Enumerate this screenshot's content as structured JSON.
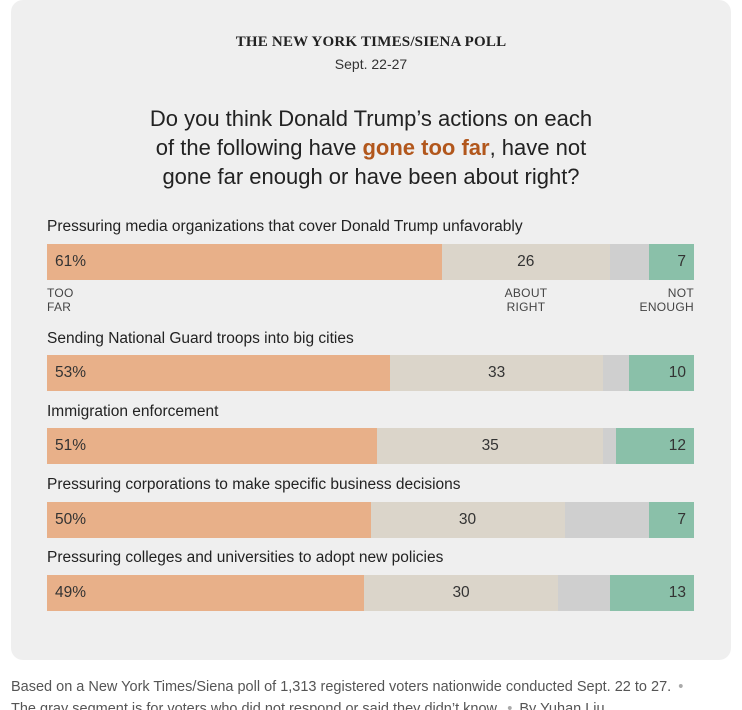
{
  "header": {
    "poll_name": "THE NEW YORK TIMES/SIENA POLL",
    "date": "Sept. 22-27"
  },
  "question": {
    "line1": "Do you think Donald Trump’s actions on each",
    "line2_pre": "of the following have ",
    "line2_highlight": "gone too far",
    "line2_post": ", have not",
    "line3": "gone far enough or have been about right?"
  },
  "legend": {
    "too_far": [
      "TOO",
      "FAR"
    ],
    "about_right": [
      "ABOUT",
      "RIGHT"
    ],
    "not_enough": [
      "NOT",
      "ENOUGH"
    ]
  },
  "colors": {
    "too_far": "#e8b089",
    "about_right": "#dbd5ca",
    "no_answer": "#cfcfcf",
    "not_enough": "#8ac0a9",
    "highlight": "#b2571c"
  },
  "chart_data": {
    "type": "bar",
    "orientation": "horizontal-stacked",
    "series_names": [
      "Too far",
      "About right",
      "No answer",
      "Not enough"
    ],
    "categories": [
      "Pressuring media organizations that cover Donald Trump unfavorably",
      "Sending National Guard troops into big cities",
      "Immigration enforcement",
      "Pressuring corporations to make specific business decisions",
      "Pressuring colleges and universities to adopt new policies"
    ],
    "series": [
      {
        "name": "Too far",
        "values": [
          61,
          53,
          51,
          50,
          49
        ]
      },
      {
        "name": "About right",
        "values": [
          26,
          33,
          35,
          30,
          30
        ]
      },
      {
        "name": "No answer",
        "values": [
          6,
          4,
          2,
          13,
          8
        ]
      },
      {
        "name": "Not enough",
        "values": [
          7,
          10,
          12,
          7,
          13
        ]
      }
    ],
    "value_labels": [
      [
        "61%",
        "26",
        "",
        "7"
      ],
      [
        "53%",
        "33",
        "",
        "10"
      ],
      [
        "51%",
        "35",
        "",
        "12"
      ],
      [
        "50%",
        "30",
        "",
        "7"
      ],
      [
        "49%",
        "30",
        "",
        "13"
      ]
    ],
    "unit": "percent",
    "xlim": [
      0,
      100
    ]
  },
  "footer": {
    "text": "Based on a New York Times/Siena poll of 1,313 registered voters nationwide conducted Sept. 22 to 27.",
    "dot": "•",
    "note": "The gray segment is for voters who did not respond or said they didn’t know.",
    "byline": "By Yuhan Liu"
  }
}
